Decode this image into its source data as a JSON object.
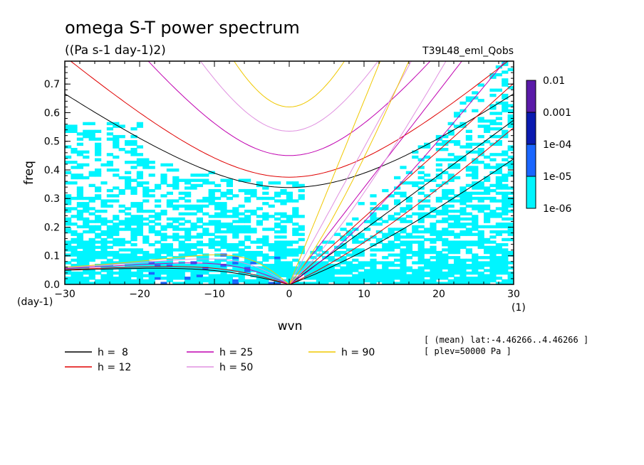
{
  "chart_data": {
    "type": "contour",
    "title": "omega S-T power spectrum",
    "subtitle": "((Pa s-1 day-1)2)",
    "experiment": "T39L48_eml_Qobs",
    "xlabel": "wvn",
    "ylabel": "freq",
    "x_unit": "(1)",
    "y_unit": "(day-1)",
    "xlim": [
      -30,
      30
    ],
    "ylim": [
      0,
      0.78
    ],
    "x_ticks": [
      "−30",
      "−20",
      "−10",
      "0",
      "10",
      "20",
      "30"
    ],
    "x_tick_values": [
      -30,
      -20,
      -10,
      0,
      10,
      20,
      30
    ],
    "y_ticks": [
      "0.0",
      "0.1",
      "0.2",
      "0.3",
      "0.4",
      "0.5",
      "0.6",
      "0.7"
    ],
    "y_tick_values": [
      0,
      0.1,
      0.2,
      0.3,
      0.4,
      0.5,
      0.6,
      0.7
    ],
    "colorbar": {
      "labels": [
        "0.01",
        "0.001",
        "1e-04",
        "1e-05",
        "1e-06"
      ],
      "colors": [
        "#5a1aa8",
        "#0a1ab0",
        "#1a66ff",
        "#00f5ff"
      ]
    },
    "fill_colors": {
      "level1": "#00f5ff",
      "level2": "#1a66ff"
    },
    "dispersion_curves": {
      "legend": [
        {
          "label": "h =  8",
          "color": "#000000",
          "h": 8
        },
        {
          "label": "h = 12",
          "color": "#e00000",
          "h": 12
        },
        {
          "label": "h = 25",
          "color": "#c000b0",
          "h": 25
        },
        {
          "label": "h = 50",
          "color": "#e090e0",
          "h": 50
        },
        {
          "label": "h = 90",
          "color": "#f0c800",
          "h": 90
        }
      ]
    },
    "annotations": [
      "[ (mean) lat:-4.46266..4.46266 ]",
      "[ plev=50000 Pa ]"
    ]
  }
}
